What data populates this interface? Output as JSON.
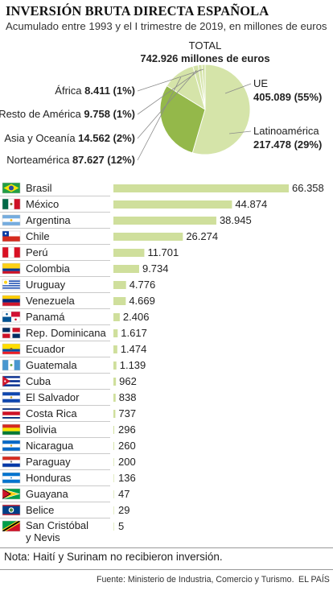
{
  "header": {
    "title": "INVERSIÓN BRUTA DIRECTA ESPAÑOLA",
    "subtitle": "Acumulado entre 1993 y el I trimestre de 2019, en millones de euros"
  },
  "colors": {
    "pie_ue": "#d5e4a9",
    "pie_latam": "#94b84a",
    "pie_other": "#d5e4a9",
    "pie_separator": "#ffffff",
    "bar": "#cfdf9c",
    "row_line": "#b9b9b9",
    "leader": "#8a8a8a"
  },
  "chart_data": [
    {
      "type": "pie",
      "total_label": "TOTAL",
      "total_value": "742.926 millones de euros",
      "slices": [
        {
          "name": "UE",
          "value": 405.089,
          "value_label": "405.089 (55%)"
        },
        {
          "name": "Latinoamérica",
          "value": 217.478,
          "value_label": "217.478 (29%)"
        },
        {
          "name": "Norteamérica",
          "value": 87.627,
          "value_label": "87.627 (12%)"
        },
        {
          "name": "Asia y Oceanía",
          "value": 14.562,
          "value_label": "14.562 (2%)"
        },
        {
          "name": "Resto de América",
          "value": 9.758,
          "value_label": "9.758 (1%)"
        },
        {
          "name": "África",
          "value": 8.411,
          "value_label": "8.411 (1%)"
        }
      ]
    },
    {
      "type": "bar",
      "orientation": "horizontal",
      "categories": [
        "Brasil",
        "México",
        "Argentina",
        "Chile",
        "Perú",
        "Colombia",
        "Uruguay",
        "Venezuela",
        "Panamá",
        "Rep. Dominicana",
        "Ecuador",
        "Guatemala",
        "Cuba",
        "El Salvador",
        "Costa Rica",
        "Bolivia",
        "Nicaragua",
        "Paraguay",
        "Honduras",
        "Guayana",
        "Belice",
        "San Cristóbal y Nevis"
      ],
      "values": [
        66358,
        44874,
        38945,
        26274,
        11701,
        9734,
        4776,
        4669,
        2406,
        1617,
        1474,
        1139,
        962,
        838,
        737,
        296,
        260,
        200,
        136,
        47,
        29,
        5
      ],
      "value_labels": [
        "66.358",
        "44.874",
        "38.945",
        "26.274",
        "11.701",
        "9.734",
        "4.776",
        "4.669",
        "2.406",
        "1.617",
        "1.474",
        "1.139",
        "962",
        "838",
        "737",
        "296",
        "260",
        "200",
        "136",
        "47",
        "29",
        "5"
      ],
      "flags": [
        "flag-brazil",
        "flag-mexico",
        "flag-argentina",
        "flag-chile",
        "flag-peru",
        "flag-colombia",
        "flag-uruguay",
        "flag-venezuela",
        "flag-panama",
        "flag-dominican-republic",
        "flag-ecuador",
        "flag-guatemala",
        "flag-cuba",
        "flag-el-salvador",
        "flag-costa-rica",
        "flag-bolivia",
        "flag-nicaragua",
        "flag-paraguay",
        "flag-honduras",
        "flag-guyana",
        "flag-belize",
        "flag-saint-kitts-and-nevis"
      ]
    }
  ],
  "note": "Nota: Haití y Surinam no recibieron inversión.",
  "source": "Fuente: Ministerio de Industria, Comercio y Turismo.",
  "publisher": "EL PAÍS"
}
